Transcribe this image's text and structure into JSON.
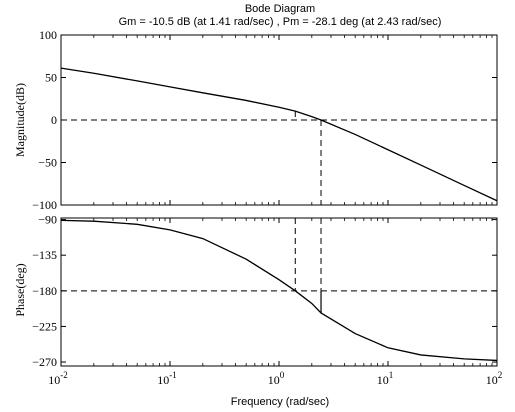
{
  "chart_data": {
    "title": "Bode Diagram",
    "subtitle": "Gm = -10.5 dB (at 1.41 rad/sec) ,  Pm = -28.1 deg (at 2.43 rad/sec)",
    "xlabel": "Frequency  (rad/sec)",
    "x_scale": "log",
    "xlim": [
      0.01,
      100
    ],
    "x_tick_labels": [
      {
        "base": "10",
        "exp": "-2"
      },
      {
        "base": "10",
        "exp": "-1"
      },
      {
        "base": "10",
        "exp": "0"
      },
      {
        "base": "10",
        "exp": "1"
      },
      {
        "base": "10",
        "exp": "2"
      }
    ],
    "margins": {
      "gain_margin_db": -10.5,
      "gain_crossover_freq": 1.41,
      "phase_margin_deg": -28.1,
      "phase_crossover_freq": 2.43
    },
    "charts": [
      {
        "type": "line",
        "ylabel": "Magnitude(dB)",
        "ylim": [
          -100,
          100
        ],
        "y_ticks": [
          100,
          50,
          0,
          -50,
          -100
        ],
        "y_tick_labels": [
          "100",
          "50",
          "0",
          "−50",
          "−100"
        ],
        "reference_line": 0,
        "series": [
          {
            "x": [
              0.01,
              0.02,
              0.05,
              0.1,
              0.2,
              0.5,
              1.0,
              1.41,
              2.0,
              2.43,
              5.0,
              10.0,
              20.0,
              50.0,
              100.0
            ],
            "y": [
              61,
              55,
              46,
              39,
              32,
              23,
              15,
              10.5,
              4,
              0,
              -17,
              -35,
              -53,
              -77,
              -95
            ]
          }
        ]
      },
      {
        "type": "line",
        "ylabel": "Phase(deg)",
        "ylim": [
          -275,
          -88
        ],
        "y_ticks": [
          -90,
          -135,
          -180,
          -225,
          -270
        ],
        "y_tick_labels": [
          "−90",
          "−135",
          "−180",
          "−225",
          "−270"
        ],
        "reference_line": -180,
        "series": [
          {
            "x": [
              0.01,
              0.02,
              0.05,
              0.1,
              0.2,
              0.5,
              1.0,
              1.41,
              2.0,
              2.43,
              5.0,
              10.0,
              20.0,
              50.0,
              100.0
            ],
            "y": [
              -91,
              -92,
              -96,
              -103,
              -114,
              -140,
              -166,
              -180,
              -196,
              -208,
              -234,
              -252,
              -261,
              -266,
              -268
            ]
          }
        ]
      }
    ]
  }
}
